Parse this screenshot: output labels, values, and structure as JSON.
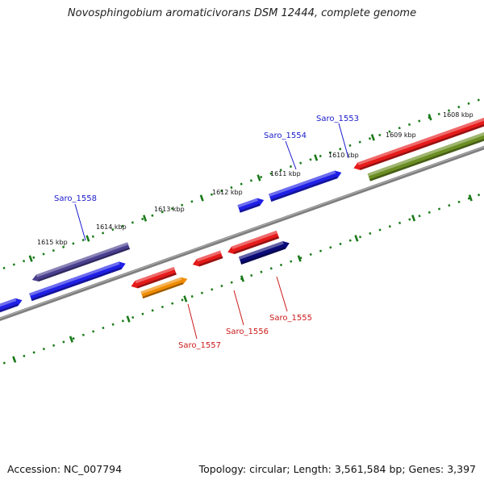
{
  "title": "Novosphingobium aromaticivorans DSM 12444, complete genome",
  "footer": {
    "accession": "Accession: NC_007794",
    "topology": "Topology: circular; Length: 3,561,584 bp; Genes: 3,397"
  },
  "colors": {
    "backbone": "#808080",
    "tick_marks": "#1a7a1a",
    "label_forward": "#1a1acc",
    "label_reverse": "#cc1a1a"
  },
  "scale_labels": [
    "1615 kbp",
    "1614 kbp",
    "1613 kbp",
    "1612 kbp",
    "1611 kbp",
    "1610 kbp",
    "1609 kbp",
    "1608 kbp"
  ],
  "labeled_genes": [
    {
      "name": "Saro_1558",
      "strand": "upper"
    },
    {
      "name": "Saro_1554",
      "strand": "upper"
    },
    {
      "name": "Saro_1553",
      "strand": "upper"
    },
    {
      "name": "Saro_1557",
      "strand": "lower"
    },
    {
      "name": "Saro_1556",
      "strand": "lower"
    },
    {
      "name": "Saro_1555",
      "strand": "lower"
    }
  ],
  "features": [
    {
      "name": "Saro_1558",
      "color": "#4a3f8f"
    },
    {
      "name": "blue-gene-1",
      "color": "#1f1fe6"
    },
    {
      "name": "blue-gene-2",
      "color": "#1f1fe6"
    },
    {
      "name": "Saro_1554",
      "color": "#1f1fe6"
    },
    {
      "name": "Saro_1553",
      "color": "#1f1fe6"
    },
    {
      "name": "red-gene-right",
      "color": "#e61a1a"
    },
    {
      "name": "olive-gene-right",
      "color": "#6b8e23"
    },
    {
      "name": "Saro_1557",
      "color": "#e61a1a"
    },
    {
      "name": "orange-gene",
      "color": "#f08c00"
    },
    {
      "name": "Saro_1556",
      "color": "#e61a1a"
    },
    {
      "name": "red-gene-center",
      "color": "#e61a1a"
    },
    {
      "name": "Saro_1555",
      "color": "#0a0a78"
    }
  ]
}
